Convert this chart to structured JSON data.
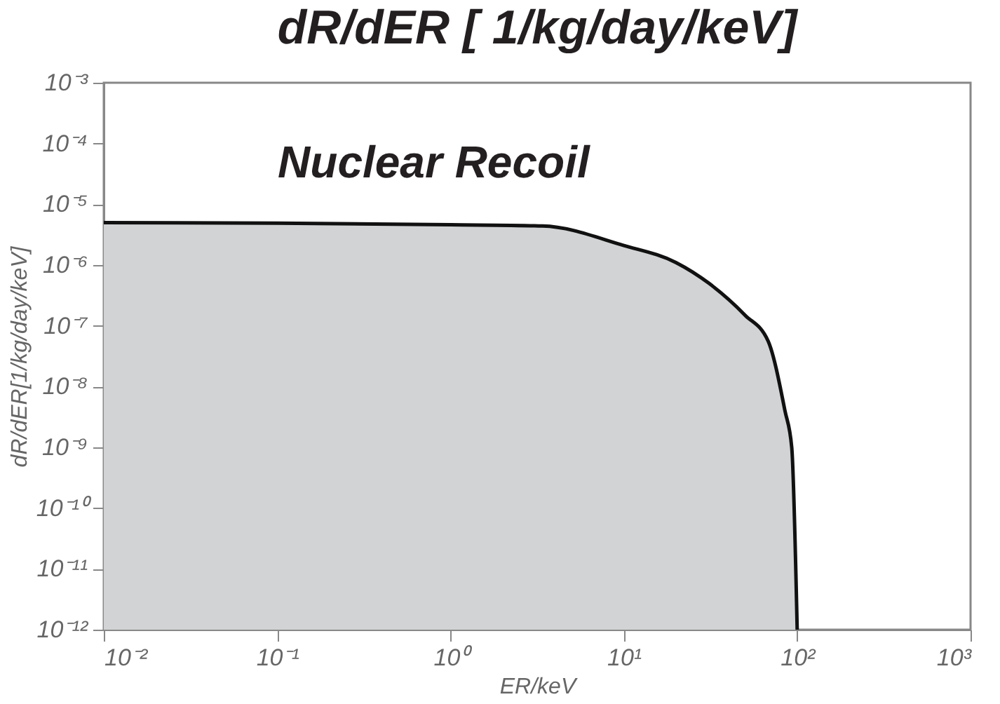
{
  "chart_data": {
    "type": "area",
    "title": "dR/dER [ 1/kg/day/keV]",
    "xlabel": "ER/keV",
    "ylabel": "dR/dER[1/kg/day/keV]",
    "annotations": [
      "Nuclear Recoil"
    ],
    "log": "xy",
    "grid": false,
    "series": [
      {
        "color": "#d1d3d4",
        "x": [
          0.01,
          0.1,
          1,
          3.4,
          10,
          20,
          31,
          50,
          68,
          85,
          93,
          100
        ],
        "values": [
          5e-06,
          4.9e-06,
          4.6e-06,
          4.4e-06,
          2.1e-06,
          1.1e-06,
          5e-07,
          1.5e-07,
          5.6e-08,
          4e-09,
          1e-09,
          1e-12
        ]
      }
    ],
    "xlim": [
      0.01,
      1000
    ],
    "ylim": [
      1e-12,
      0.001
    ],
    "xticks": [
      {
        "value": 0.01,
        "label": "10⁻²"
      },
      {
        "value": 0.1,
        "label": "10⁻¹"
      },
      {
        "value": 1,
        "label": "10⁰"
      },
      {
        "value": 10,
        "label": "10¹"
      },
      {
        "value": 100,
        "label": "10²"
      },
      {
        "value": 1000,
        "label": "10³"
      }
    ],
    "yticks": [
      {
        "value": 1e-12,
        "label": "10⁻¹²"
      },
      {
        "value": 1e-11,
        "label": "10⁻¹¹"
      },
      {
        "value": 1e-10,
        "label": "10⁻¹⁰"
      },
      {
        "value": 1e-09,
        "label": "10⁻⁹"
      },
      {
        "value": 1e-08,
        "label": "10⁻⁸"
      },
      {
        "value": 1e-07,
        "label": "10⁻⁷"
      },
      {
        "value": 1e-06,
        "label": "10⁻⁶"
      },
      {
        "value": 1e-05,
        "label": "10⁻⁵"
      },
      {
        "value": 0.0001,
        "label": "10⁻⁴"
      },
      {
        "value": 0.001,
        "label": "10⁻³"
      }
    ]
  }
}
